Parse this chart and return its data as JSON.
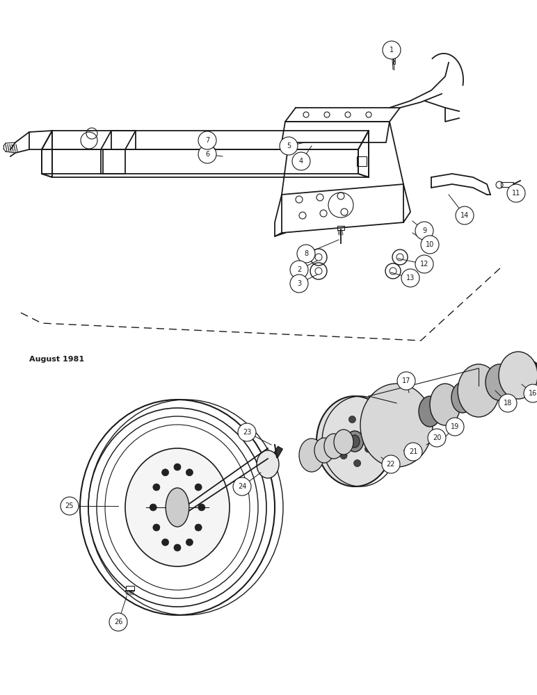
{
  "bg_color": "#ffffff",
  "line_color": "#1a1a1a",
  "date_text": "August 1981",
  "figsize": [
    7.72,
    10.0
  ],
  "dpi": 100
}
